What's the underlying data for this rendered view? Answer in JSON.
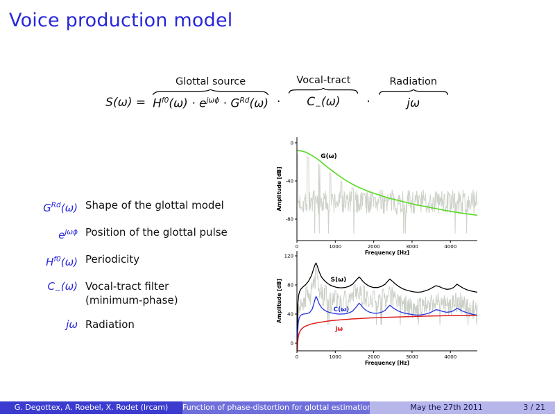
{
  "slide": {
    "title": "Voice production model"
  },
  "colors": {
    "structure_blue": "#2727d8",
    "footer_left_bg": "#3b3bd0",
    "footer_mid_bg": "#6f6fdc",
    "footer_right_bg": "#b6b6ea",
    "footer_right_text": "#13134e"
  },
  "equation": {
    "lhs": "S(ω) =",
    "separator": "·",
    "groups": [
      {
        "label": "Glottal source",
        "math": "H^{f0}(ω) · e^{jωϕ} · G^{Rd}(ω)"
      },
      {
        "label": "Vocal-tract",
        "math": "C_{−}(ω)"
      },
      {
        "label": "Radiation",
        "math": "jω"
      }
    ]
  },
  "legend": {
    "items": [
      {
        "math": "G^{Rd}(ω)",
        "desc": "Shape of the glottal model"
      },
      {
        "math": "e^{jωϕ}",
        "desc": "Position of the glottal pulse"
      },
      {
        "math": "H^{f0}(ω)",
        "desc": "Periodicity"
      },
      {
        "math": "C_{−}(ω)",
        "desc": "Vocal-tract filter\n(minimum-phase)"
      },
      {
        "math": "jω",
        "desc": "Radiation"
      }
    ]
  },
  "footer": {
    "authors": "G. Degottex, A. Roebel, X. Rodet (Ircam)",
    "talk_title": "Function of phase-distortion for glottal estimation",
    "date": "May the 27th 2011",
    "page": "3 / 21"
  },
  "chart_data": [
    {
      "type": "line",
      "title": "",
      "xlabel": "Frequency [Hz]",
      "ylabel": "Amplitude [dB]",
      "xlim": [
        0,
        4700
      ],
      "ylim": [
        -102.5,
        5.8
      ],
      "xticks": [
        0,
        1000,
        2000,
        3000,
        4000
      ],
      "yticks": [
        0,
        -40,
        -80
      ],
      "grid": false,
      "series": [
        {
          "name": "speech-dft-spectrum",
          "color": "#cdd3c9",
          "width": 1,
          "gen": {
            "seed": 7,
            "step": 12,
            "mode": "flat",
            "floor": -62,
            "jitter": 13,
            "f0": 290,
            "spike_until": 2400,
            "spike_w": 22,
            "spike_gap": 4,
            "follow": 1,
            "notch_p": 0.02,
            "notch_v": -95
          }
        },
        {
          "name": "glottal-source-envelope-G",
          "color": "#5fd92c",
          "width": 1.7,
          "points": [
            [
              0,
              -8
            ],
            [
              120,
              -8.6
            ],
            [
              240,
              -10
            ],
            [
              360,
              -12.5
            ],
            [
              480,
              -15.5
            ],
            [
              600,
              -19
            ],
            [
              720,
              -23
            ],
            [
              840,
              -27
            ],
            [
              960,
              -30.5
            ],
            [
              1080,
              -34
            ],
            [
              1200,
              -37.5
            ],
            [
              1320,
              -40.5
            ],
            [
              1450,
              -43.5
            ],
            [
              1600,
              -46.5
            ],
            [
              1750,
              -49
            ],
            [
              1900,
              -51.5
            ],
            [
              2050,
              -53.5
            ],
            [
              2200,
              -55.5
            ],
            [
              2350,
              -57.5
            ],
            [
              2500,
              -59
            ],
            [
              2650,
              -60.5
            ],
            [
              2800,
              -62
            ],
            [
              2950,
              -63.5
            ],
            [
              3100,
              -65
            ],
            [
              3250,
              -66
            ],
            [
              3400,
              -67.2
            ],
            [
              3550,
              -68.4
            ],
            [
              3700,
              -69.6
            ],
            [
              3850,
              -70.8
            ],
            [
              4000,
              -71.8
            ],
            [
              4150,
              -72.8
            ],
            [
              4300,
              -73.8
            ],
            [
              4450,
              -74.6
            ],
            [
              4600,
              -75.4
            ],
            [
              4700,
              -76
            ]
          ]
        }
      ],
      "annotations": [
        {
          "text": "G(ω)",
          "x": 620,
          "y": -16,
          "color": "#000000"
        }
      ]
    },
    {
      "type": "line",
      "title": "",
      "xlabel": "Frequency [Hz]",
      "ylabel": "Amplitude [dB]",
      "xlim": [
        0,
        4700
      ],
      "ylim": [
        -10.5,
        126.7
      ],
      "xticks": [
        0,
        1000,
        2000,
        3000,
        4000
      ],
      "yticks": [
        0,
        40,
        80,
        120
      ],
      "grid": false,
      "series": [
        {
          "name": "speech-dft-spectrum",
          "color": "#c9cfc6",
          "width": 1,
          "gen": {
            "seed": 11,
            "step": 12,
            "mode": "band",
            "off": 8,
            "range": 30,
            "jitter": 0,
            "f0": 250,
            "spike_until": 2300,
            "spike_w": 20,
            "spike_gap": 5,
            "follow": 1,
            "notch_p": 0.02,
            "notch_v": 25
          }
        },
        {
          "name": "speech-envelope-S",
          "color": "#000000",
          "width": 1.3,
          "points": [
            [
              8,
              -8
            ],
            [
              15,
              30
            ],
            [
              25,
              55
            ],
            [
              45,
              66
            ],
            [
              70,
              71
            ],
            [
              100,
              74
            ],
            [
              150,
              77
            ],
            [
              220,
              80
            ],
            [
              300,
              85
            ],
            [
              380,
              93
            ],
            [
              440,
              103
            ],
            [
              480,
              109
            ],
            [
              500,
              110
            ],
            [
              530,
              106
            ],
            [
              580,
              98
            ],
            [
              640,
              91
            ],
            [
              700,
              87
            ],
            [
              780,
              83
            ],
            [
              860,
              80
            ],
            [
              950,
              78
            ],
            [
              1050,
              76.5
            ],
            [
              1150,
              76
            ],
            [
              1250,
              76.5
            ],
            [
              1350,
              78
            ],
            [
              1450,
              81
            ],
            [
              1550,
              87
            ],
            [
              1620,
              91
            ],
            [
              1660,
              89
            ],
            [
              1720,
              85
            ],
            [
              1800,
              81
            ],
            [
              1900,
              78
            ],
            [
              2000,
              76.5
            ],
            [
              2100,
              76.5
            ],
            [
              2200,
              78
            ],
            [
              2300,
              81
            ],
            [
              2380,
              86
            ],
            [
              2420,
              88
            ],
            [
              2470,
              86
            ],
            [
              2550,
              82
            ],
            [
              2650,
              78
            ],
            [
              2750,
              75
            ],
            [
              2850,
              73
            ],
            [
              2950,
              71.5
            ],
            [
              3050,
              70.5
            ],
            [
              3150,
              70
            ],
            [
              3250,
              70.5
            ],
            [
              3350,
              72
            ],
            [
              3450,
              74
            ],
            [
              3550,
              77
            ],
            [
              3620,
              79
            ],
            [
              3700,
              78
            ],
            [
              3800,
              75.5
            ],
            [
              3900,
              74
            ],
            [
              4000,
              74.5
            ],
            [
              4080,
              76.5
            ],
            [
              4170,
              81
            ],
            [
              4230,
              79
            ],
            [
              4320,
              76
            ],
            [
              4420,
              73.5
            ],
            [
              4550,
              71.5
            ],
            [
              4700,
              70
            ]
          ]
        },
        {
          "name": "vocal-tract-filter-C",
          "color": "#2432e0",
          "width": 1.3,
          "points": [
            [
              8,
              -8
            ],
            [
              20,
              15
            ],
            [
              35,
              28
            ],
            [
              60,
              35
            ],
            [
              100,
              38.5
            ],
            [
              160,
              40
            ],
            [
              250,
              40.5
            ],
            [
              330,
              42
            ],
            [
              400,
              47
            ],
            [
              450,
              56
            ],
            [
              480,
              62
            ],
            [
              500,
              64
            ],
            [
              530,
              61
            ],
            [
              580,
              54
            ],
            [
              640,
              49
            ],
            [
              700,
              46
            ],
            [
              780,
              43.5
            ],
            [
              860,
              42
            ],
            [
              950,
              41
            ],
            [
              1050,
              40.2
            ],
            [
              1150,
              40
            ],
            [
              1250,
              40.3
            ],
            [
              1350,
              41.5
            ],
            [
              1450,
              44
            ],
            [
              1550,
              50
            ],
            [
              1620,
              55
            ],
            [
              1660,
              53
            ],
            [
              1720,
              49
            ],
            [
              1800,
              45
            ],
            [
              1900,
              42.5
            ],
            [
              2000,
              41.2
            ],
            [
              2100,
              41.2
            ],
            [
              2200,
              42.5
            ],
            [
              2300,
              45
            ],
            [
              2380,
              50
            ],
            [
              2420,
              52
            ],
            [
              2470,
              50
            ],
            [
              2550,
              47
            ],
            [
              2650,
              44
            ],
            [
              2750,
              42
            ],
            [
              2850,
              40.8
            ],
            [
              2950,
              39.8
            ],
            [
              3050,
              39
            ],
            [
              3150,
              38.6
            ],
            [
              3250,
              39
            ],
            [
              3350,
              40
            ],
            [
              3450,
              41.5
            ],
            [
              3550,
              44
            ],
            [
              3620,
              46
            ],
            [
              3700,
              45.3
            ],
            [
              3800,
              43.5
            ],
            [
              3900,
              42.5
            ],
            [
              4000,
              43
            ],
            [
              4080,
              44.5
            ],
            [
              4170,
              48
            ],
            [
              4230,
              46.5
            ],
            [
              4320,
              44
            ],
            [
              4420,
              42
            ],
            [
              4550,
              40
            ],
            [
              4700,
              38.5
            ]
          ]
        },
        {
          "name": "radiation-jw",
          "color": "#dd1f1f",
          "width": 1.5,
          "points": [
            [
              10,
              -10
            ],
            [
              15,
              -3
            ],
            [
              25,
              4
            ],
            [
              40,
              10
            ],
            [
              60,
              14
            ],
            [
              90,
              17.5
            ],
            [
              130,
              20
            ],
            [
              190,
              22.5
            ],
            [
              270,
              24.5
            ],
            [
              380,
              26.5
            ],
            [
              520,
              28
            ],
            [
              700,
              29.5
            ],
            [
              900,
              31
            ],
            [
              1150,
              32.2
            ],
            [
              1450,
              33.3
            ],
            [
              1800,
              34.4
            ],
            [
              2200,
              35.3
            ],
            [
              2600,
              36
            ],
            [
              3000,
              36.7
            ],
            [
              3400,
              37.2
            ],
            [
              3800,
              37.7
            ],
            [
              4200,
              37.9
            ],
            [
              4700,
              38.3
            ]
          ]
        }
      ],
      "annotations": [
        {
          "text": "S(ω)",
          "x": 880,
          "y": 85,
          "color": "#000000"
        },
        {
          "text": "C(ω)",
          "x": 950,
          "y": 44,
          "color": "#2432e0"
        },
        {
          "text": "jω",
          "x": 1000,
          "y": 17,
          "color": "#dd1f1f"
        }
      ]
    }
  ]
}
